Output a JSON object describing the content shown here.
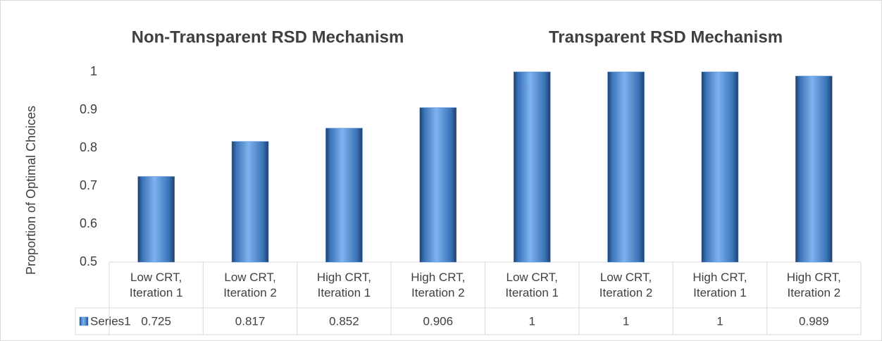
{
  "chart_data": {
    "type": "bar",
    "annotations": [
      "Non-Transparent RSD Mechanism",
      "Transparent RSD Mechanism"
    ],
    "y_label": "Proportion of Optimal Choices",
    "categories": [
      "Low CRT, Iteration 1",
      "Low CRT, Iteration 2",
      "High CRT, Iteration 1",
      "High CRT, Iteration 2",
      "Low CRT, Iteration 1",
      "Low CRT, Iteration 2",
      "High CRT, Iteration 1",
      "High CRT, Iteration 2"
    ],
    "series": [
      {
        "name": "Series1",
        "color": "#4a8ad4",
        "values": [
          0.725,
          0.817,
          0.852,
          0.906,
          1,
          1,
          1,
          0.989
        ]
      }
    ],
    "ylim": [
      0.5,
      1
    ],
    "yticks": [
      0.5,
      0.6,
      0.7,
      0.8,
      0.9,
      1
    ],
    "grid": false,
    "data_table": true
  }
}
